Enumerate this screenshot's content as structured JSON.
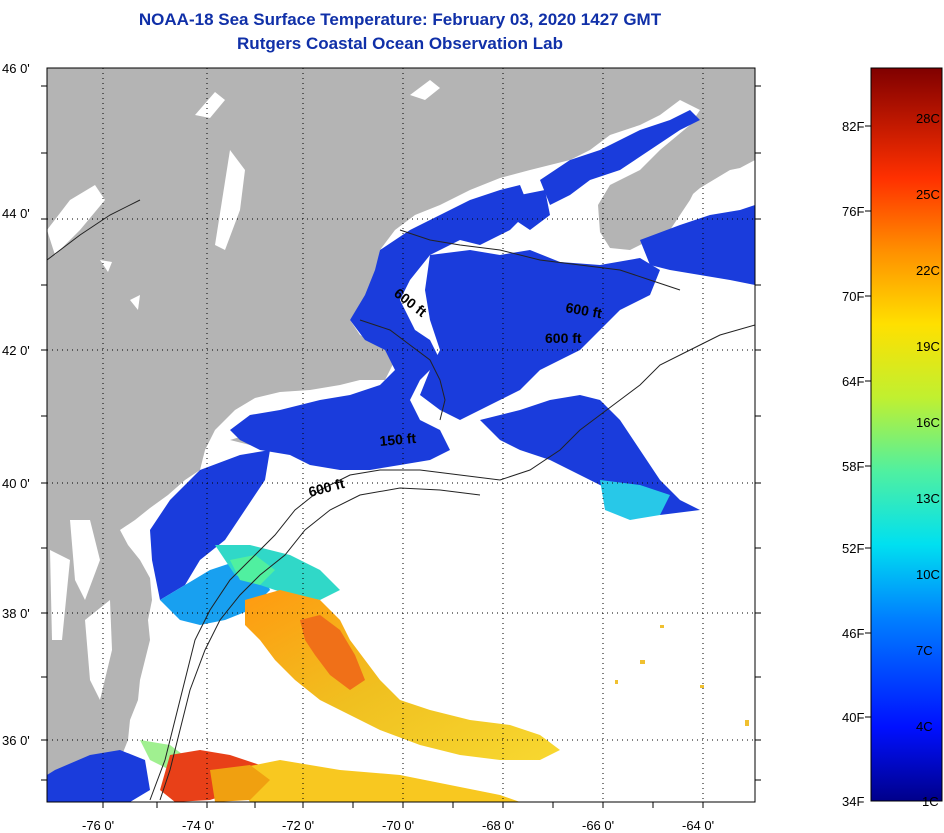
{
  "title": {
    "line1": "NOAA-18 Sea Surface Temperature:  February 03, 2020 1427 GMT",
    "line2": "Rutgers Coastal Ocean Observation Lab"
  },
  "colors": {
    "title": "#1030a8",
    "land": "#b4b4b4",
    "cloud": "#ffffff",
    "cold_water": "#1a3cdc",
    "warm_water": "#f0a010",
    "hot_water": "#e84018"
  },
  "latitude_labels": [
    "46 0'",
    "44 0'",
    "42 0'",
    "40 0'",
    "38 0'",
    "36 0'"
  ],
  "longitude_labels": [
    "-76 0'",
    "-74 0'",
    "-72 0'",
    "-70 0'",
    "-68 0'",
    "-66 0'",
    "-64 0'"
  ],
  "contours": {
    "labels": [
      "600 ft",
      "600 ft",
      "600 ft",
      "150 ft",
      "600 ft"
    ]
  },
  "colorbar": {
    "fahrenheit": [
      "82F",
      "76F",
      "70F",
      "64F",
      "58F",
      "52F",
      "46F",
      "40F",
      "34F"
    ],
    "celsius": [
      "28C",
      "25C",
      "22C",
      "19C",
      "16C",
      "13C",
      "10C",
      "7C",
      "4C",
      "1C"
    ]
  }
}
